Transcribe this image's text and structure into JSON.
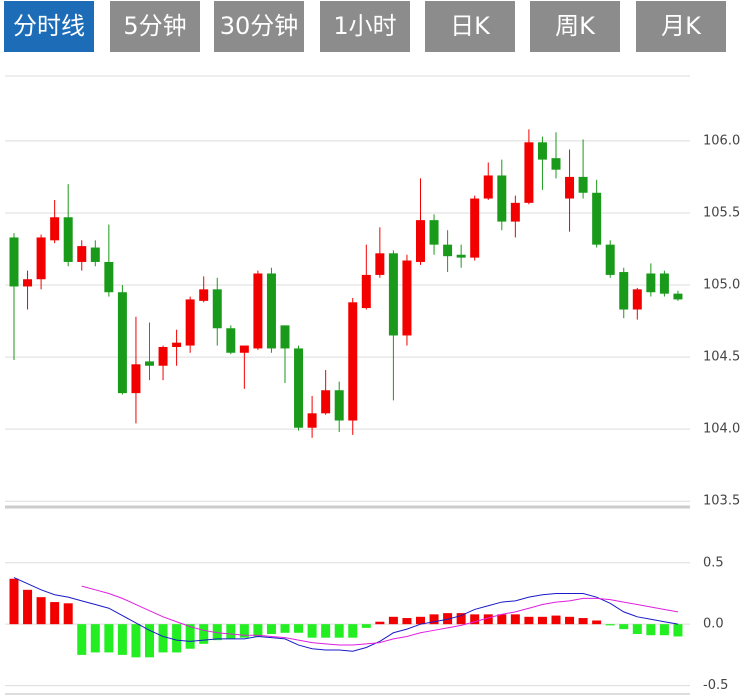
{
  "tabs": [
    {
      "label": "分时线",
      "active": true
    },
    {
      "label": "5分钟",
      "active": false
    },
    {
      "label": "30分钟",
      "active": false
    },
    {
      "label": "1小时",
      "active": false
    },
    {
      "label": "日K",
      "active": false
    },
    {
      "label": "周K",
      "active": false
    },
    {
      "label": "月K",
      "active": false
    }
  ],
  "chart_data": [
    {
      "type": "candlestick",
      "up_color": "#f20000",
      "down_color": "#1a9a1a",
      "grid": true,
      "ylim": [
        103.46,
        106.45
      ],
      "yticks": [
        {
          "value": 106,
          "label": "106.0"
        },
        105.5,
        {
          "value": 105,
          "label": "105.0"
        },
        104.5,
        {
          "value": 104,
          "label": "104.0"
        },
        103.5
      ],
      "open": [
        105.33,
        104.99,
        105.04,
        105.31,
        105.47,
        105.16,
        105.26,
        105.16,
        104.95,
        104.25,
        104.47,
        104.44,
        104.57,
        104.58,
        104.89,
        104.97,
        104.7,
        104.53,
        104.56,
        105.08,
        104.72,
        104.56,
        104.01,
        104.11,
        104.27,
        104.06,
        104.84,
        105.07,
        105.22,
        104.65,
        105.16,
        105.45,
        105.28,
        105.21,
        105.19,
        105.6,
        105.76,
        105.44,
        105.57,
        105.99,
        105.88,
        105.6,
        105.75,
        105.64,
        105.28,
        105.09,
        104.83,
        105.08,
        105.08,
        104.94
      ],
      "high": [
        105.36,
        105.1,
        105.35,
        105.59,
        105.7,
        105.31,
        105.31,
        105.42,
        105.0,
        104.78,
        104.74,
        104.58,
        104.69,
        104.92,
        105.06,
        105.05,
        104.72,
        104.58,
        105.1,
        105.12,
        104.72,
        104.58,
        104.23,
        104.41,
        104.33,
        104.91,
        105.28,
        105.4,
        105.24,
        105.21,
        105.74,
        105.49,
        105.38,
        105.28,
        105.62,
        105.85,
        105.87,
        105.62,
        106.08,
        106.03,
        106.06,
        105.94,
        106.01,
        105.73,
        105.31,
        105.12,
        104.98,
        105.15,
        105.1,
        104.96
      ],
      "low": [
        104.48,
        104.83,
        104.97,
        105.29,
        105.13,
        105.1,
        105.13,
        104.92,
        104.24,
        104.04,
        104.34,
        104.34,
        104.44,
        104.53,
        104.88,
        104.58,
        104.52,
        104.28,
        104.55,
        104.53,
        104.32,
        103.99,
        103.94,
        104.1,
        103.98,
        103.96,
        104.83,
        105.05,
        104.2,
        104.58,
        105.14,
        105.21,
        105.09,
        105.12,
        105.17,
        105.59,
        105.38,
        105.33,
        105.56,
        105.66,
        105.74,
        105.37,
        105.6,
        105.26,
        105.05,
        104.77,
        104.76,
        104.92,
        104.92,
        104.89
      ],
      "close": [
        104.99,
        105.04,
        105.33,
        105.47,
        105.16,
        105.27,
        105.16,
        104.95,
        104.25,
        104.45,
        104.44,
        104.57,
        104.6,
        104.9,
        104.97,
        104.7,
        104.53,
        104.58,
        105.08,
        104.56,
        104.56,
        104.01,
        104.11,
        104.27,
        104.06,
        104.88,
        105.07,
        105.22,
        104.65,
        105.17,
        105.45,
        105.28,
        105.2,
        105.19,
        105.6,
        105.76,
        105.44,
        105.57,
        105.99,
        105.87,
        105.8,
        105.75,
        105.64,
        105.28,
        105.07,
        104.83,
        104.97,
        104.95,
        104.94,
        104.9
      ]
    },
    {
      "type": "macd",
      "up_color": "#f20000",
      "down_color": "#22ee22",
      "grid": true,
      "ylim": [
        -0.585,
        0.93
      ],
      "yticks": [
        0.5,
        {
          "value": 0,
          "label": "0.0"
        },
        -0.5
      ],
      "values": [
        0.37,
        0.28,
        0.22,
        0.18,
        0.17,
        -0.25,
        -0.23,
        -0.23,
        -0.25,
        -0.27,
        -0.27,
        -0.23,
        -0.23,
        -0.2,
        -0.16,
        -0.13,
        -0.12,
        -0.11,
        -0.1,
        -0.08,
        -0.07,
        -0.07,
        -0.11,
        -0.11,
        -0.11,
        -0.11,
        -0.03,
        0.02,
        0.06,
        0.05,
        0.06,
        0.08,
        0.09,
        0.09,
        0.08,
        0.08,
        0.08,
        0.08,
        0.06,
        0.06,
        0.07,
        0.06,
        0.05,
        0.03,
        -0.01,
        -0.04,
        -0.08,
        -0.09,
        -0.09,
        -0.1
      ],
      "series": [
        {
          "color": "#1a1ac8",
          "values": [
            0.38,
            0.33,
            0.28,
            0.24,
            0.22,
            0.19,
            0.16,
            0.13,
            0.07,
            0.01,
            -0.05,
            -0.1,
            -0.13,
            -0.14,
            -0.13,
            -0.12,
            -0.12,
            -0.12,
            -0.1,
            -0.11,
            -0.12,
            -0.17,
            -0.2,
            -0.21,
            -0.21,
            -0.22,
            -0.19,
            -0.14,
            -0.07,
            -0.04,
            0.0,
            0.02,
            0.04,
            0.07,
            0.12,
            0.15,
            0.18,
            0.19,
            0.22,
            0.24,
            0.25,
            0.25,
            0.25,
            0.22,
            0.17,
            0.1,
            0.06,
            0.04,
            0.02,
            0.0
          ]
        },
        {
          "color": "#e01ee0",
          "values": [
            null,
            null,
            null,
            null,
            null,
            0.31,
            0.28,
            0.25,
            0.21,
            0.16,
            0.11,
            0.06,
            0.02,
            -0.02,
            -0.05,
            -0.07,
            -0.08,
            -0.09,
            -0.09,
            -0.1,
            -0.11,
            -0.13,
            -0.15,
            -0.16,
            -0.17,
            -0.17,
            -0.16,
            -0.15,
            -0.12,
            -0.1,
            -0.07,
            -0.05,
            -0.03,
            -0.01,
            0.02,
            0.05,
            0.08,
            0.1,
            0.13,
            0.16,
            0.18,
            0.19,
            0.21,
            0.21,
            0.2,
            0.18,
            0.16,
            0.14,
            0.12,
            0.1
          ]
        }
      ]
    }
  ]
}
